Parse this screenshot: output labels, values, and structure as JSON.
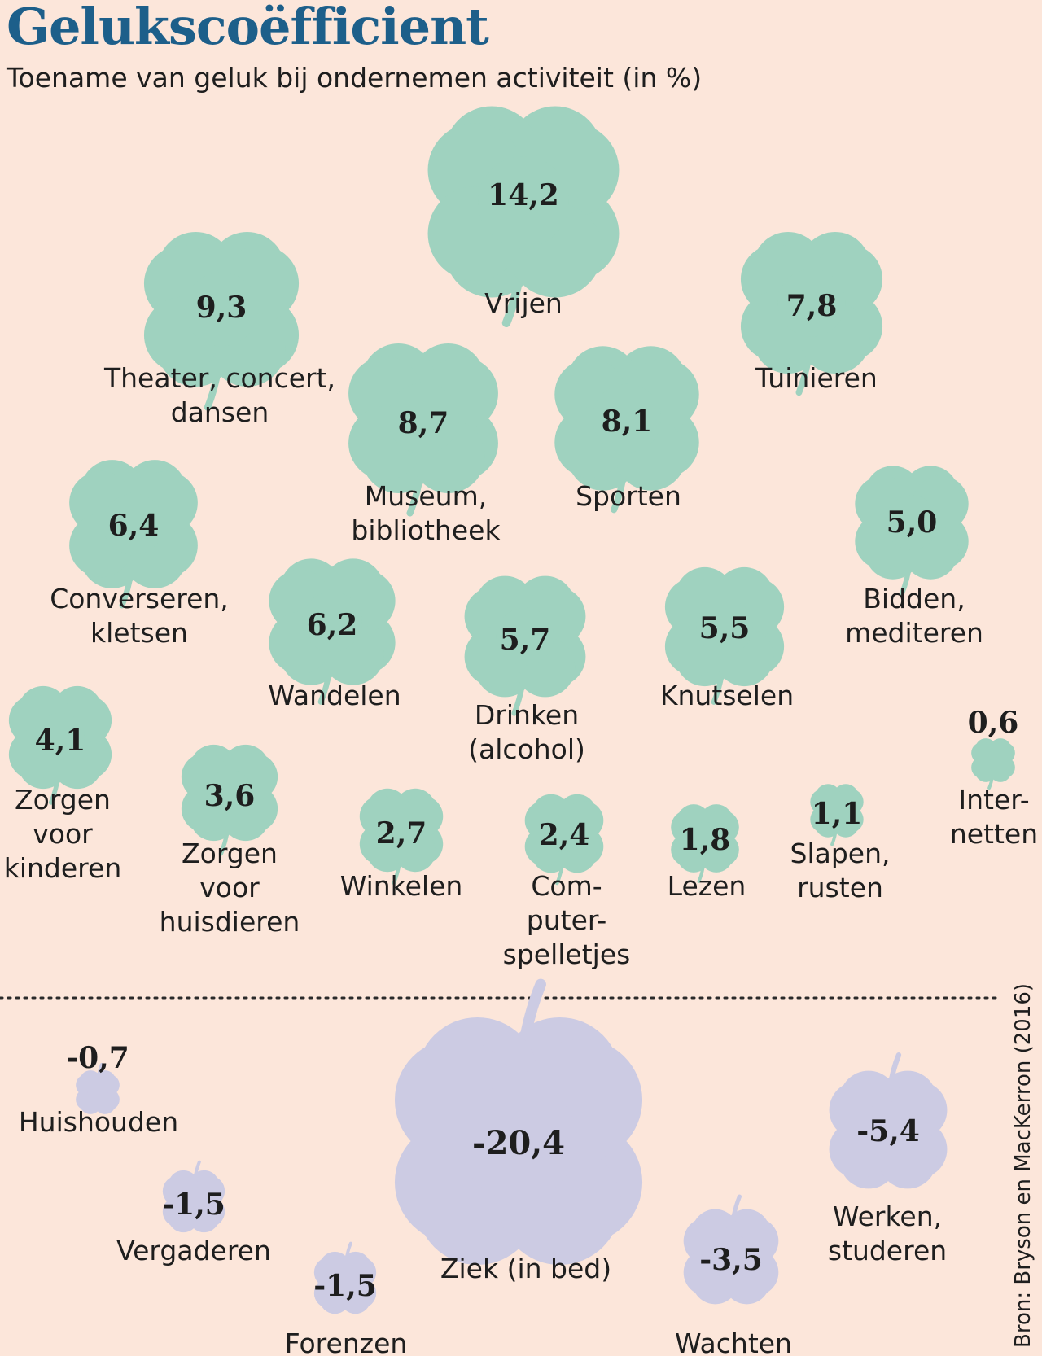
{
  "title": "Gelukscoëfficient",
  "subtitle": "Toename van geluk bij ondernemen activiteit (in %)",
  "source": "Bron: Bryson en MacKerron (2016)",
  "colors": {
    "background": "#fce6da",
    "positive": "#9fd2bf",
    "negative": "#cccbe3",
    "title": "#1d5f8a",
    "text": "#1e1e1e"
  },
  "chart_data": {
    "type": "pictorial-scatter",
    "marker": "four-leaf-clover",
    "value_unit": "%",
    "items": [
      {
        "label": "Vrijen",
        "value": 14.2,
        "value_label": "14,2"
      },
      {
        "label": "Theater, concert, dansen",
        "value": 9.3,
        "value_label": "9,3"
      },
      {
        "label": "Museum, bibliotheek",
        "value": 8.7,
        "value_label": "8,7"
      },
      {
        "label": "Sporten",
        "value": 8.1,
        "value_label": "8,1"
      },
      {
        "label": "Tuinieren",
        "value": 7.8,
        "value_label": "7,8"
      },
      {
        "label": "Converseren, kletsen",
        "value": 6.4,
        "value_label": "6,4"
      },
      {
        "label": "Wandelen",
        "value": 6.2,
        "value_label": "6,2"
      },
      {
        "label": "Drinken (alcohol)",
        "value": 5.7,
        "value_label": "5,7"
      },
      {
        "label": "Knutselen",
        "value": 5.5,
        "value_label": "5,5"
      },
      {
        "label": "Bidden, mediteren",
        "value": 5.0,
        "value_label": "5,0"
      },
      {
        "label": "Zorgen voor kinderen",
        "value": 4.1,
        "value_label": "4,1"
      },
      {
        "label": "Zorgen voor huisdieren",
        "value": 3.6,
        "value_label": "3,6"
      },
      {
        "label": "Winkelen",
        "value": 2.7,
        "value_label": "2,7"
      },
      {
        "label": "Computerspelletjes",
        "value": 2.4,
        "value_label": "2,4"
      },
      {
        "label": "Lezen",
        "value": 1.8,
        "value_label": "1,8"
      },
      {
        "label": "Slapen, rusten",
        "value": 1.1,
        "value_label": "1,1"
      },
      {
        "label": "Internetten",
        "value": 0.6,
        "value_label": "0,6"
      },
      {
        "label": "Huishouden",
        "value": -0.7,
        "value_label": "-0,7"
      },
      {
        "label": "Vergaderen",
        "value": -1.5,
        "value_label": "-1,5"
      },
      {
        "label": "Forenzen",
        "value": -1.5,
        "value_label": "-1,5"
      },
      {
        "label": "Ziek (in bed)",
        "value": -20.4,
        "value_label": "-20,4"
      },
      {
        "label": "Wachten",
        "value": -3.5,
        "value_label": "-3,5"
      },
      {
        "label": "Werken, studeren",
        "value": -5.4,
        "value_label": "-5,4"
      }
    ]
  }
}
